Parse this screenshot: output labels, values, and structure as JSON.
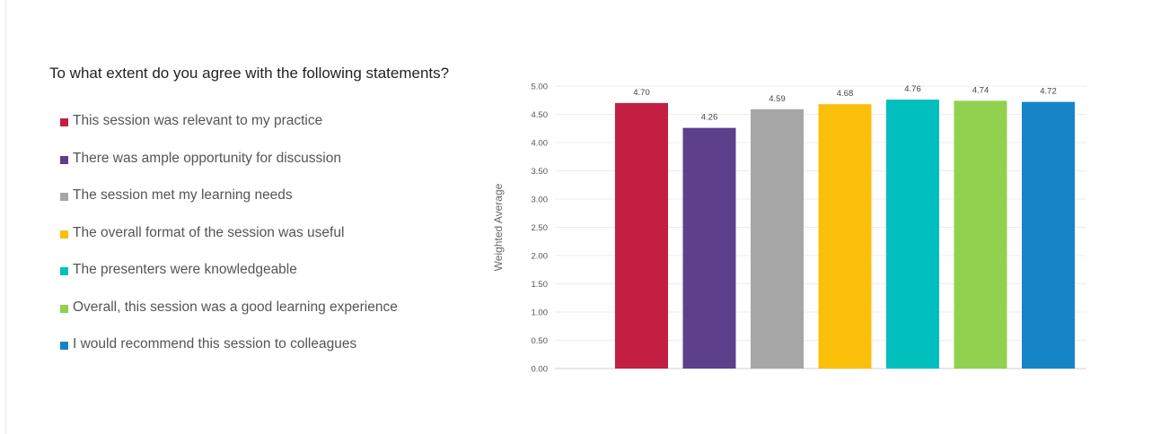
{
  "question": "To what extent do you agree with the following statements?",
  "chart_data": {
    "type": "bar",
    "categories": [
      "This session was relevant to my practice",
      "There was ample opportunity for discussion",
      "The session met my learning needs",
      "The overall format of the session was useful",
      "The presenters were knowledgeable",
      "Overall, this session was a good learning experience",
      "I would recommend this session to colleagues"
    ],
    "values": [
      4.7,
      4.26,
      4.59,
      4.68,
      4.76,
      4.74,
      4.72
    ],
    "data_labels": [
      "4.70",
      "4.26",
      "4.59",
      "4.68",
      "4.76",
      "4.74",
      "4.72"
    ],
    "colors": [
      "#c41e42",
      "#5d3f8c",
      "#a6a6a6",
      "#fbbf0a",
      "#00bfbc",
      "#92d050",
      "#1585c8"
    ],
    "ylabel": "Weighted Average",
    "ylim": [
      0,
      5
    ],
    "yticks": [
      "0.00",
      "0.50",
      "1.00",
      "1.50",
      "2.00",
      "2.50",
      "3.00",
      "3.50",
      "4.00",
      "4.50",
      "5.00"
    ],
    "grid": true,
    "legend_position": "left"
  }
}
